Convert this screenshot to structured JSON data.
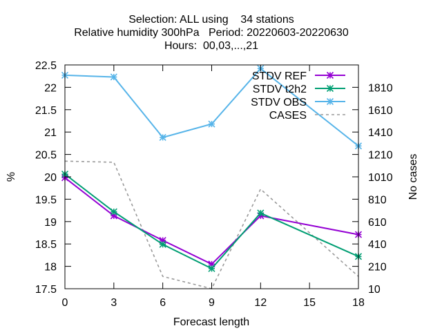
{
  "chart_data": {
    "type": "line",
    "title_lines": [
      "Selection: ALL using    34 stations",
      "Relative humidity 300hPa   Period: 20220603-20220630",
      "Hours:  00,03,...,21"
    ],
    "xlabel": "Forecast length",
    "ylabel": "%",
    "y2label": "No cases",
    "x": [
      0,
      3,
      6,
      9,
      12,
      15,
      18
    ],
    "xlim": [
      0,
      18
    ],
    "ylim": [
      17.5,
      22.5
    ],
    "y2lim": [
      10,
      2010
    ],
    "xticks": [
      "0",
      "3",
      "6",
      "9",
      "12",
      "15",
      "18"
    ],
    "yticks": [
      "17.5",
      "18",
      "18.5",
      "19",
      "19.5",
      "20",
      "20.5",
      "21",
      "21.5",
      "22",
      "22.5"
    ],
    "y2ticks": [
      "10",
      "210",
      "410",
      "610",
      "810",
      "1010",
      "1210",
      "1410",
      "1610",
      "1810"
    ],
    "legend_position": "top-right",
    "grid": false,
    "series": [
      {
        "name": "STDV REF",
        "color": "#9400d3",
        "marker": "x-star",
        "axis": "y",
        "x": [
          0,
          3,
          6,
          9,
          12,
          18
        ],
        "values": [
          19.98,
          19.13,
          18.58,
          18.05,
          19.13,
          18.71
        ]
      },
      {
        "name": "STDV t2h2",
        "color": "#009e73",
        "marker": "x-star",
        "axis": "y",
        "x": [
          0,
          3,
          6,
          9,
          12,
          18
        ],
        "values": [
          20.06,
          19.22,
          18.49,
          17.95,
          19.19,
          18.22
        ]
      },
      {
        "name": "STDV OBS",
        "color": "#56b4e9",
        "marker": "x-star",
        "axis": "y",
        "x": [
          0,
          3,
          6,
          9,
          12,
          18
        ],
        "values": [
          22.27,
          22.23,
          20.88,
          21.18,
          22.42,
          20.69
        ]
      },
      {
        "name": "CASES",
        "color": "#999999",
        "marker": "none",
        "dashed": true,
        "axis": "y2",
        "x": [
          0,
          3,
          6,
          9,
          12,
          18
        ],
        "values": [
          1150,
          1140,
          120,
          10,
          900,
          120
        ]
      }
    ]
  }
}
